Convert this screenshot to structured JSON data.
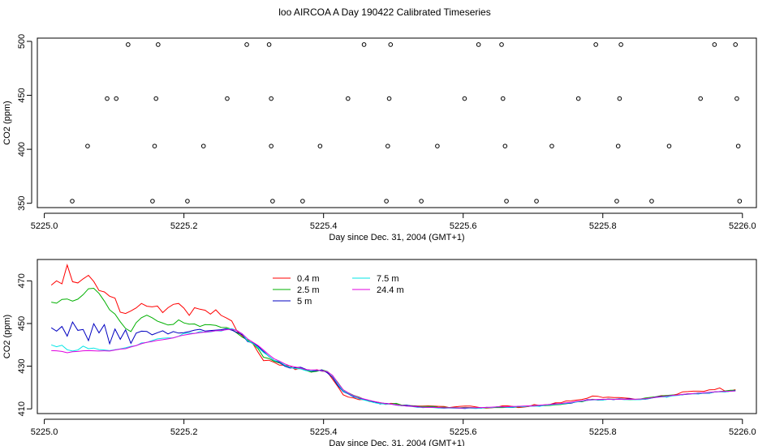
{
  "title": "loo AIRCOA A  Day 190422  Calibrated Timeseries",
  "chart_data": [
    {
      "type": "scatter",
      "name": "top-panel",
      "xlabel": "Day since Dec. 31, 2004 (GMT+1)",
      "ylabel": "CO2 (ppm)",
      "xlim": [
        4.99,
        6.02
      ],
      "ylim": [
        346,
        503
      ],
      "xticks": [
        "5225.0",
        "5225.2",
        "5225.4",
        "5225.6",
        "5225.8",
        "5226.0"
      ],
      "xtick_values": [
        5.0,
        5.2,
        5.4,
        5.6,
        5.8,
        6.0
      ],
      "yticks": [
        "350",
        "400",
        "450",
        "500"
      ],
      "ytick_values": [
        350,
        400,
        450,
        500
      ],
      "markers": [
        {
          "x": 5.04,
          "y": 352
        },
        {
          "x": 5.062,
          "y": 403
        },
        {
          "x": 5.09,
          "y": 447
        },
        {
          "x": 5.103,
          "y": 447
        },
        {
          "x": 5.12,
          "y": 497
        },
        {
          "x": 5.155,
          "y": 352
        },
        {
          "x": 5.158,
          "y": 403
        },
        {
          "x": 5.16,
          "y": 447
        },
        {
          "x": 5.163,
          "y": 497
        },
        {
          "x": 5.205,
          "y": 352
        },
        {
          "x": 5.228,
          "y": 403
        },
        {
          "x": 5.262,
          "y": 447
        },
        {
          "x": 5.29,
          "y": 497
        },
        {
          "x": 5.322,
          "y": 497
        },
        {
          "x": 5.325,
          "y": 447
        },
        {
          "x": 5.325,
          "y": 403
        },
        {
          "x": 5.327,
          "y": 352
        },
        {
          "x": 5.37,
          "y": 352
        },
        {
          "x": 5.395,
          "y": 403
        },
        {
          "x": 5.435,
          "y": 447
        },
        {
          "x": 5.458,
          "y": 497
        },
        {
          "x": 5.49,
          "y": 352
        },
        {
          "x": 5.492,
          "y": 403
        },
        {
          "x": 5.494,
          "y": 447
        },
        {
          "x": 5.496,
          "y": 497
        },
        {
          "x": 5.54,
          "y": 352
        },
        {
          "x": 5.563,
          "y": 403
        },
        {
          "x": 5.602,
          "y": 447
        },
        {
          "x": 5.622,
          "y": 497
        },
        {
          "x": 5.655,
          "y": 497
        },
        {
          "x": 5.657,
          "y": 447
        },
        {
          "x": 5.66,
          "y": 403
        },
        {
          "x": 5.662,
          "y": 352
        },
        {
          "x": 5.705,
          "y": 352
        },
        {
          "x": 5.727,
          "y": 403
        },
        {
          "x": 5.765,
          "y": 447
        },
        {
          "x": 5.79,
          "y": 497
        },
        {
          "x": 5.82,
          "y": 352
        },
        {
          "x": 5.822,
          "y": 403
        },
        {
          "x": 5.824,
          "y": 447
        },
        {
          "x": 5.826,
          "y": 497
        },
        {
          "x": 5.87,
          "y": 352
        },
        {
          "x": 5.895,
          "y": 403
        },
        {
          "x": 5.94,
          "y": 447
        },
        {
          "x": 5.96,
          "y": 497
        },
        {
          "x": 5.99,
          "y": 497
        },
        {
          "x": 5.992,
          "y": 447
        },
        {
          "x": 5.994,
          "y": 403
        },
        {
          "x": 5.996,
          "y": 352
        }
      ]
    },
    {
      "type": "line",
      "name": "bottom-panel",
      "xlabel": "Day since Dec. 31, 2004 (GMT+1)",
      "ylabel": "CO2 (ppm)",
      "xlim": [
        4.99,
        6.02
      ],
      "ylim": [
        407.8,
        480
      ],
      "xticks": [
        "5225.0",
        "5225.2",
        "5225.4",
        "5225.6",
        "5225.8",
        "5226.0"
      ],
      "xtick_values": [
        5.0,
        5.2,
        5.4,
        5.6,
        5.8,
        6.0
      ],
      "yticks": [
        "410",
        "430",
        "450",
        "470"
      ],
      "ytick_values": [
        410,
        430,
        450,
        470
      ],
      "legend_position": "top-left-center",
      "x": [
        5.01,
        5.0176,
        5.0252,
        5.0328,
        5.0404,
        5.048,
        5.0556,
        5.0632,
        5.0708,
        5.0784,
        5.086,
        5.0936,
        5.1012,
        5.1088,
        5.1164,
        5.124,
        5.1316,
        5.1392,
        5.1468,
        5.1544,
        5.162,
        5.1696,
        5.1772,
        5.1848,
        5.1924,
        5.2,
        5.2076,
        5.2152,
        5.2228,
        5.2304,
        5.238,
        5.2456,
        5.2532,
        5.2608,
        5.2684,
        5.276,
        5.2836,
        5.2912,
        5.2988,
        5.3064,
        5.314,
        5.3216,
        5.3292,
        5.3368,
        5.3444,
        5.352,
        5.3596,
        5.3672,
        5.3748,
        5.3824,
        5.39,
        5.3976,
        5.4052,
        5.4128,
        5.4204,
        5.428,
        5.4356,
        5.4432,
        5.4508,
        5.4584,
        5.466,
        5.4736,
        5.4812,
        5.4888,
        5.4964,
        5.504,
        5.5116,
        5.5192,
        5.5268,
        5.5344,
        5.542,
        5.5496,
        5.5572,
        5.5648,
        5.5724,
        5.58,
        5.5876,
        5.5952,
        5.6028,
        5.6104,
        5.618,
        5.6256,
        5.6332,
        5.6408,
        5.6484,
        5.656,
        5.6636,
        5.6712,
        5.6788,
        5.6864,
        5.694,
        5.7016,
        5.7092,
        5.7168,
        5.7244,
        5.732,
        5.7396,
        5.7472,
        5.7548,
        5.7624,
        5.77,
        5.7776,
        5.7852,
        5.7928,
        5.8004,
        5.808,
        5.8156,
        5.8232,
        5.8308,
        5.8384,
        5.846,
        5.8536,
        5.8612,
        5.8688,
        5.8764,
        5.884,
        5.8916,
        5.8992,
        5.9068,
        5.9144,
        5.922,
        5.9296,
        5.9372,
        5.9448,
        5.9524,
        5.96,
        5.9676,
        5.9752,
        5.9828,
        5.99
      ],
      "series": [
        {
          "name": "0.4 m",
          "color": "#ff0000",
          "values": [
            468,
            470,
            468.6,
            477.4,
            469.6,
            469,
            470.9,
            472.6,
            469.7,
            465.5,
            464.8,
            462.8,
            461.9,
            455.3,
            454.7,
            455.9,
            457.3,
            459.4,
            458.1,
            457.8,
            458.2,
            455.1,
            457.4,
            459,
            459.4,
            457.2,
            453.8,
            457.4,
            456.7,
            456.2,
            454.4,
            456.4,
            453.8,
            452.6,
            451.2,
            446.5,
            444.2,
            441.8,
            440.6,
            436.4,
            432.6,
            432.8,
            431.8,
            430.5,
            430.5,
            430.1,
            428.4,
            429.2,
            428,
            427.3,
            428.4,
            427.6,
            427.4,
            423.9,
            420.5,
            416.6,
            415.5,
            415.1,
            414.3,
            414.4,
            413.4,
            413.3,
            412.9,
            412.1,
            412.6,
            412.4,
            411.6,
            411.3,
            411.5,
            411.3,
            411.3,
            411.4,
            411.3,
            411.2,
            411.1,
            410.6,
            410.9,
            411.2,
            411.3,
            411.3,
            410.9,
            410.5,
            410.4,
            410.5,
            410.8,
            411.4,
            411.4,
            411.1,
            410.6,
            410.8,
            411.1,
            412,
            411.6,
            411.9,
            412.1,
            412.8,
            412.8,
            413.7,
            413.8,
            414.1,
            414.4,
            415,
            416,
            415.9,
            415.3,
            415.5,
            415.3,
            415.3,
            415.1,
            414.9,
            414.5,
            414.5,
            414.8,
            415.3,
            415.7,
            416.2,
            416.2,
            416.4,
            416.9,
            418,
            418.1,
            418.3,
            418.3,
            418.2,
            418.9,
            419,
            419.8,
            418.3,
            418.4,
            419
          ]
        },
        {
          "name": "2.5 m",
          "color": "#00b000",
          "values": [
            460,
            459.5,
            461.3,
            461.5,
            460.5,
            461.4,
            463.5,
            466.3,
            466.5,
            464.1,
            460.5,
            456.4,
            454.4,
            450.8,
            447.7,
            446.2,
            450.4,
            452.7,
            453.9,
            452.7,
            451.1,
            450.2,
            449.3,
            449.6,
            451.7,
            450.3,
            449.7,
            449.8,
            448.6,
            449.5,
            449.4,
            449.1,
            448.2,
            448.1,
            447.3,
            445.5,
            443.6,
            442.3,
            440.5,
            438.1,
            434.2,
            433.6,
            432.3,
            431.5,
            430.4,
            429.4,
            429.1,
            429.2,
            428,
            427.2,
            427.6,
            428.3,
            427.6,
            425.5,
            422.4,
            418.9,
            417.5,
            416.3,
            415.5,
            414.4,
            413.6,
            413.3,
            412.8,
            412.5,
            412.3,
            412.6,
            411.8,
            411.7,
            411.4,
            411.1,
            411.1,
            411.1,
            411.2,
            410.7,
            410.8,
            410.6,
            410.6,
            410.5,
            410.7,
            410.6,
            410.5,
            410.4,
            410.5,
            410.6,
            410.6,
            410.6,
            410.7,
            410.7,
            410.9,
            411,
            411.4,
            411.5,
            411.5,
            411.5,
            411.6,
            411.9,
            412,
            412.4,
            412.7,
            413.4,
            413.3,
            414,
            414.5,
            414.2,
            414.3,
            414.6,
            414.5,
            414.5,
            414.5,
            414.3,
            414.4,
            414.6,
            415.1,
            415.4,
            415.7,
            416.1,
            416.3,
            416.5,
            416.5,
            416.7,
            417.1,
            417.1,
            417.5,
            417.5,
            417.4,
            417.9,
            418.1,
            418.4,
            418.7,
            418.7
          ]
        },
        {
          "name": "5 m",
          "color": "#0000c0",
          "values": [
            448,
            446.4,
            448.6,
            444.1,
            450.7,
            446.8,
            447.2,
            442,
            449.9,
            445.6,
            449.5,
            440.5,
            447.4,
            442.6,
            447,
            440.7,
            445.5,
            446.4,
            446.3,
            444.7,
            445.7,
            446.6,
            445.1,
            446.2,
            445.5,
            445.7,
            446.2,
            446.9,
            447.3,
            446.5,
            446.7,
            446.9,
            447.1,
            447.6,
            446.9,
            445.8,
            444.7,
            441.5,
            441,
            439.2,
            436.9,
            434.6,
            432.7,
            431.8,
            430,
            429.1,
            429.3,
            429.5,
            428.5,
            427.6,
            427.9,
            428.3,
            426.9,
            424.8,
            421,
            418.1,
            417,
            415.6,
            414.9,
            414.3,
            413.5,
            413.3,
            412.3,
            412.6,
            412.3,
            411.8,
            411.5,
            411.7,
            411.3,
            411.1,
            410.6,
            410.7,
            410.8,
            410.5,
            410.3,
            410.5,
            410.4,
            410.3,
            410.2,
            410.5,
            410.4,
            410.4,
            410.7,
            410.6,
            410.9,
            410.9,
            410.7,
            410.7,
            411.2,
            411.1,
            411.3,
            411.3,
            411.4,
            411.7,
            412,
            412.4,
            412.3,
            412.5,
            412.7,
            413.3,
            413.6,
            414.3,
            414.3,
            414.2,
            414.2,
            414.6,
            414.3,
            414.7,
            414.5,
            414.7,
            414.4,
            414.5,
            414.5,
            415,
            415.6,
            415.8,
            415.5,
            416.3,
            416.4,
            416.6,
            416.9,
            417.1,
            417,
            417.4,
            417.3,
            417.9,
            418.1,
            418,
            418.3,
            418.6
          ]
        },
        {
          "name": "7.5 m",
          "color": "#00e5e5",
          "values": [
            440,
            439.1,
            439.8,
            437.7,
            437.1,
            437.6,
            439.4,
            438.2,
            438.5,
            437.8,
            437.6,
            437.3,
            437.7,
            438.1,
            438.6,
            439.3,
            439.6,
            440.9,
            441.1,
            442,
            442.8,
            443.1,
            443.2,
            443.3,
            444,
            445.4,
            445.5,
            445.3,
            446.2,
            445.9,
            446.1,
            446.6,
            446.5,
            447.2,
            447.6,
            446.7,
            445.1,
            441.8,
            440.7,
            438.6,
            436.4,
            434.7,
            432.7,
            432.2,
            430.5,
            429.5,
            428.9,
            428.7,
            427.9,
            427.8,
            428.2,
            427.7,
            427.5,
            425.6,
            421.6,
            418.4,
            417.2,
            415.9,
            414.7,
            414.1,
            413.5,
            412.8,
            412.4,
            412.2,
            412.3,
            412,
            411.5,
            411.3,
            411.1,
            410.7,
            410.7,
            410.7,
            410.6,
            410.4,
            410.4,
            410.4,
            410.3,
            410.4,
            410.4,
            410.3,
            410.2,
            410.4,
            410.7,
            410.6,
            410.9,
            410.9,
            410.7,
            410.8,
            411.2,
            411,
            411.3,
            411.4,
            411.2,
            411.7,
            411.8,
            412.1,
            412.2,
            412.6,
            412.9,
            413.2,
            413.6,
            414,
            414.2,
            414.3,
            414.2,
            414.5,
            414.4,
            414.6,
            414.3,
            414.4,
            414.3,
            414.3,
            414.6,
            415,
            415.4,
            415.6,
            415.6,
            416.1,
            416.3,
            416.7,
            417,
            417.1,
            417,
            417.5,
            417.4,
            417.9,
            418,
            418,
            418.3,
            418.4
          ]
        },
        {
          "name": "24.4 m",
          "color": "#e000e0",
          "values": [
            437.3,
            437.2,
            436.9,
            436.3,
            436.8,
            436.9,
            437.2,
            437.3,
            437.2,
            437.1,
            437.2,
            437.1,
            437.6,
            438,
            438.2,
            439,
            439.7,
            440.5,
            441.2,
            441.6,
            442.1,
            442.4,
            442.8,
            443.3,
            444,
            444.6,
            445,
            445.4,
            445.7,
            446,
            446.3,
            446.6,
            446.7,
            447.1,
            447.3,
            446.7,
            445.1,
            442.8,
            441.2,
            439.7,
            437.6,
            435.4,
            433.5,
            432.4,
            431.1,
            430.1,
            429.6,
            429.1,
            428.4,
            428.2,
            428.3,
            427.9,
            427.4,
            425.7,
            422.2,
            419,
            417.4,
            416.2,
            415.3,
            414.6,
            414,
            413.4,
            412.9,
            412.5,
            412.3,
            411.9,
            411.6,
            411.3,
            411.2,
            410.9,
            410.8,
            410.7,
            410.7,
            410.6,
            410.5,
            410.5,
            410.5,
            410.4,
            410.5,
            410.5,
            410.5,
            410.6,
            410.7,
            410.8,
            410.9,
            410.9,
            411,
            411.1,
            411.2,
            411.3,
            411.4,
            411.5,
            411.7,
            411.9,
            412.1,
            412.3,
            412.5,
            412.8,
            413.1,
            413.5,
            413.8,
            414.1,
            414.3,
            414.4,
            414.5,
            414.5,
            414.5,
            414.5,
            414.5,
            414.5,
            414.5,
            414.6,
            414.8,
            415.1,
            415.4,
            415.7,
            416,
            416.3,
            416.5,
            416.8,
            417,
            417.2,
            417.4,
            417.6,
            417.8,
            418,
            418.1,
            418.2,
            418.3,
            418.4
          ]
        }
      ]
    }
  ]
}
